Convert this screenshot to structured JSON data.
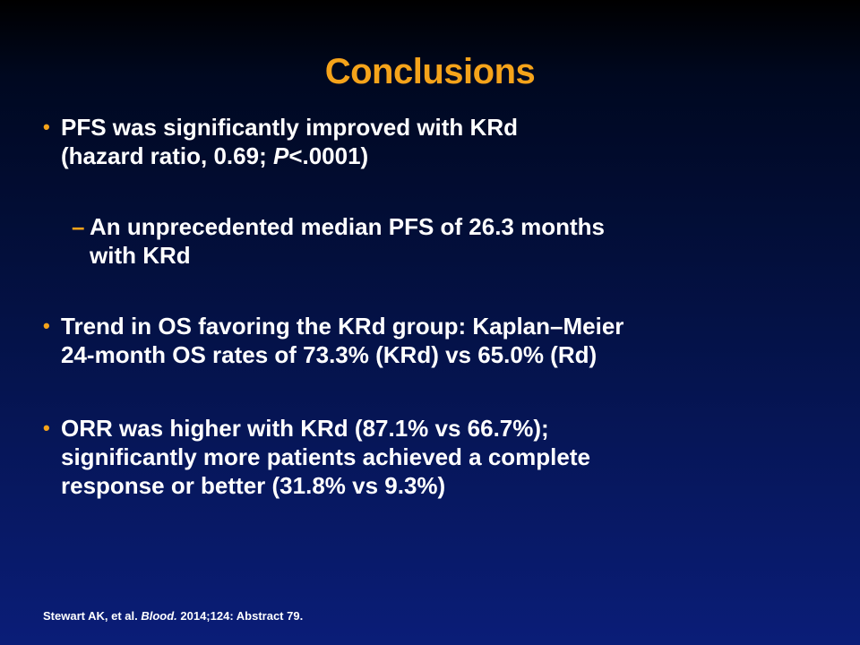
{
  "slide": {
    "title": "Conclusions",
    "bullets": [
      {
        "marker": "•",
        "line1": "PFS was significantly improved with KRd",
        "line2_pre": "(hazard ratio, 0.69; ",
        "line2_italic": "P",
        "line2_post": "<.0001)"
      },
      {
        "marker": "•",
        "line1": "Trend in OS favoring the KRd group: Kaplan–Meier",
        "line2": "24-month OS rates of 73.3% (KRd) vs 65.0% (Rd)"
      },
      {
        "marker": "•",
        "line1": "ORR was higher with KRd (87.1% vs 66.7%);",
        "line2": "significantly more patients achieved a complete",
        "line3": "response or better (31.8% vs 9.3%)"
      }
    ],
    "sub_bullet": {
      "marker": "–",
      "line1": "An unprecedented median PFS of 26.3 months",
      "line2": "with KRd"
    },
    "citation": {
      "pre": "Stewart AK, et al. ",
      "journal": "Blood.",
      "post": " 2014;124: Abstract 79."
    }
  },
  "colors": {
    "title": "#f5a31a",
    "text": "#ffffff",
    "background_top": "#000000",
    "background_bottom": "#0a1d78"
  }
}
